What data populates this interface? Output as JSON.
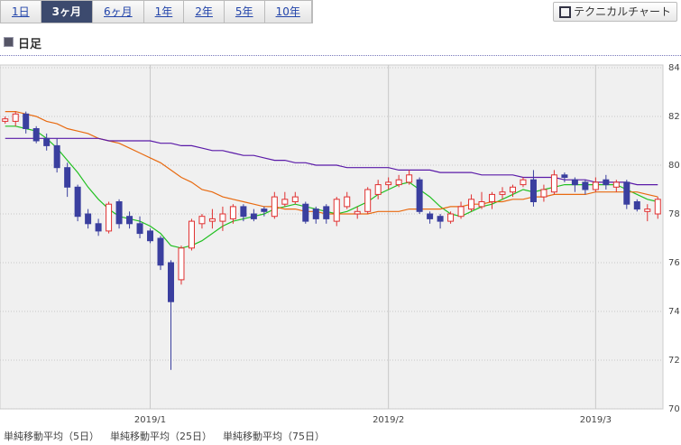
{
  "tabs": {
    "items": [
      "1日",
      "3ヶ月",
      "6ヶ月",
      "1年",
      "2年",
      "5年",
      "10年"
    ],
    "selected": 1
  },
  "button": {
    "label": "テクニカルチャート"
  },
  "heading": {
    "title": "日足"
  },
  "chart_data": {
    "type": "candlestick",
    "categories": [
      null,
      null,
      null,
      null,
      null,
      null,
      null,
      null,
      null,
      null,
      null,
      null,
      null,
      null,
      "2019/1",
      null,
      null,
      null,
      null,
      null,
      null,
      null,
      null,
      null,
      null,
      null,
      null,
      null,
      null,
      null,
      null,
      null,
      null,
      null,
      null,
      null,
      null,
      "2019/2",
      null,
      null,
      null,
      null,
      null,
      null,
      null,
      null,
      null,
      null,
      null,
      null,
      null,
      null,
      null,
      null,
      null,
      null,
      null,
      "2019/3",
      null,
      null,
      null,
      null,
      null,
      null
    ],
    "up_color": "#e03030",
    "down_color": "#3a3f9f",
    "open": [
      81.8,
      81.8,
      82.1,
      81.5,
      81.1,
      80.8,
      79.9,
      79.1,
      78.0,
      77.6,
      77.3,
      78.5,
      77.9,
      77.6,
      77.3,
      77.0,
      76.0,
      75.3,
      76.6,
      77.6,
      77.7,
      77.7,
      77.8,
      78.3,
      78.0,
      78.2,
      77.9,
      78.4,
      78.5,
      78.4,
      78.2,
      78.3,
      77.7,
      78.3,
      78.0,
      78.1,
      78.8,
      79.2,
      79.2,
      79.3,
      79.4,
      78.0,
      77.9,
      77.7,
      77.9,
      78.2,
      78.3,
      78.5,
      78.8,
      78.9,
      79.2,
      79.4,
      78.7,
      78.9,
      79.6,
      79.4,
      79.3,
      79.0,
      79.4,
      79.1,
      79.3,
      78.5,
      78.1,
      78.0
    ],
    "high": [
      82.0,
      82.2,
      82.2,
      81.6,
      81.3,
      81.1,
      80.1,
      79.2,
      78.2,
      77.8,
      78.5,
      78.6,
      78.1,
      77.9,
      77.4,
      77.1,
      76.1,
      76.7,
      77.8,
      78.0,
      78.2,
      78.3,
      78.4,
      78.4,
      78.2,
      78.3,
      78.9,
      78.9,
      78.9,
      78.5,
      78.3,
      78.4,
      78.7,
      78.9,
      78.3,
      79.1,
      79.4,
      79.5,
      79.6,
      79.8,
      79.5,
      78.1,
      78.0,
      78.1,
      78.5,
      78.8,
      78.9,
      78.9,
      79.1,
      79.2,
      79.5,
      79.8,
      79.2,
      79.8,
      79.7,
      79.5,
      79.4,
      79.5,
      79.6,
      79.4,
      79.4,
      78.6,
      78.4,
      78.7
    ],
    "low": [
      81.7,
      81.6,
      81.3,
      80.9,
      80.6,
      79.7,
      78.7,
      77.7,
      77.4,
      77.1,
      77.2,
      77.4,
      77.4,
      77.0,
      76.8,
      75.7,
      71.6,
      75.1,
      76.5,
      77.4,
      77.4,
      77.3,
      77.6,
      77.7,
      77.7,
      77.9,
      77.8,
      78.3,
      78.4,
      77.6,
      77.6,
      77.6,
      77.5,
      78.2,
      77.8,
      78.0,
      78.6,
      79.0,
      79.1,
      79.2,
      78.0,
      77.6,
      77.4,
      77.6,
      77.8,
      78.1,
      78.2,
      78.2,
      78.6,
      78.7,
      79.1,
      78.3,
      78.5,
      78.8,
      79.3,
      78.9,
      78.8,
      78.9,
      79.0,
      78.9,
      78.2,
      78.1,
      77.7,
      77.8
    ],
    "close": [
      81.9,
      82.1,
      81.5,
      81.0,
      80.8,
      79.9,
      79.1,
      77.9,
      77.6,
      77.3,
      78.4,
      77.6,
      77.6,
      77.2,
      76.9,
      75.9,
      74.4,
      76.6,
      77.7,
      77.9,
      77.8,
      78.0,
      78.3,
      77.9,
      77.8,
      78.1,
      78.7,
      78.6,
      78.7,
      77.7,
      77.8,
      77.8,
      78.6,
      78.7,
      78.1,
      79.0,
      79.2,
      79.3,
      79.4,
      79.6,
      78.1,
      77.8,
      77.7,
      78.0,
      78.3,
      78.6,
      78.5,
      78.8,
      78.9,
      79.1,
      79.4,
      78.5,
      79.0,
      79.6,
      79.5,
      79.2,
      79.0,
      79.3,
      79.2,
      79.3,
      78.4,
      78.2,
      78.2,
      78.6
    ],
    "series": [
      {
        "name": "単純移動平均（5日）",
        "color": "#22c022",
        "values": [
          81.6,
          81.6,
          81.5,
          81.4,
          81.1,
          80.7,
          80.2,
          79.7,
          79.1,
          78.6,
          78.2,
          77.9,
          77.8,
          77.7,
          77.5,
          77.2,
          76.7,
          76.6,
          76.7,
          76.9,
          77.2,
          77.5,
          77.7,
          77.8,
          77.9,
          78.0,
          78.2,
          78.3,
          78.4,
          78.3,
          78.2,
          78.1,
          78.0,
          78.1,
          78.3,
          78.5,
          78.8,
          79.0,
          79.2,
          79.3,
          79.0,
          78.7,
          78.3,
          78.0,
          77.9,
          78.1,
          78.3,
          78.4,
          78.6,
          78.8,
          79.0,
          78.9,
          79.0,
          79.1,
          79.2,
          79.2,
          79.2,
          79.2,
          79.2,
          79.2,
          79.0,
          78.8,
          78.6,
          78.5
        ]
      },
      {
        "name": "単純移動平均（25日）",
        "color": "#e86a10",
        "values": [
          82.2,
          82.2,
          82.1,
          82.0,
          81.8,
          81.7,
          81.5,
          81.4,
          81.3,
          81.1,
          81.0,
          80.9,
          80.7,
          80.5,
          80.3,
          80.1,
          79.8,
          79.5,
          79.3,
          79.0,
          78.9,
          78.7,
          78.6,
          78.5,
          78.4,
          78.3,
          78.3,
          78.2,
          78.2,
          78.1,
          78.1,
          78.0,
          78.0,
          78.0,
          78.0,
          78.0,
          78.1,
          78.1,
          78.1,
          78.2,
          78.2,
          78.2,
          78.2,
          78.3,
          78.3,
          78.4,
          78.4,
          78.5,
          78.5,
          78.6,
          78.6,
          78.7,
          78.7,
          78.8,
          78.8,
          78.8,
          78.8,
          78.9,
          78.9,
          78.9,
          78.9,
          78.9,
          78.8,
          78.7
        ]
      },
      {
        "name": "単純移動平均（75日）",
        "color": "#5a1aa8",
        "values": [
          81.1,
          81.1,
          81.1,
          81.1,
          81.1,
          81.1,
          81.1,
          81.1,
          81.1,
          81.1,
          81.0,
          81.0,
          81.0,
          81.0,
          81.0,
          80.9,
          80.9,
          80.8,
          80.8,
          80.7,
          80.6,
          80.6,
          80.5,
          80.4,
          80.4,
          80.3,
          80.2,
          80.2,
          80.1,
          80.1,
          80.0,
          80.0,
          80.0,
          79.9,
          79.9,
          79.9,
          79.9,
          79.9,
          79.8,
          79.8,
          79.8,
          79.8,
          79.7,
          79.7,
          79.7,
          79.7,
          79.6,
          79.6,
          79.6,
          79.6,
          79.5,
          79.5,
          79.5,
          79.5,
          79.4,
          79.4,
          79.4,
          79.3,
          79.3,
          79.3,
          79.3,
          79.2,
          79.2,
          79.2
        ]
      }
    ],
    "ylim": [
      70,
      84
    ],
    "yticks": [
      70,
      72,
      74,
      76,
      78,
      80,
      82,
      84
    ],
    "grid": true
  }
}
